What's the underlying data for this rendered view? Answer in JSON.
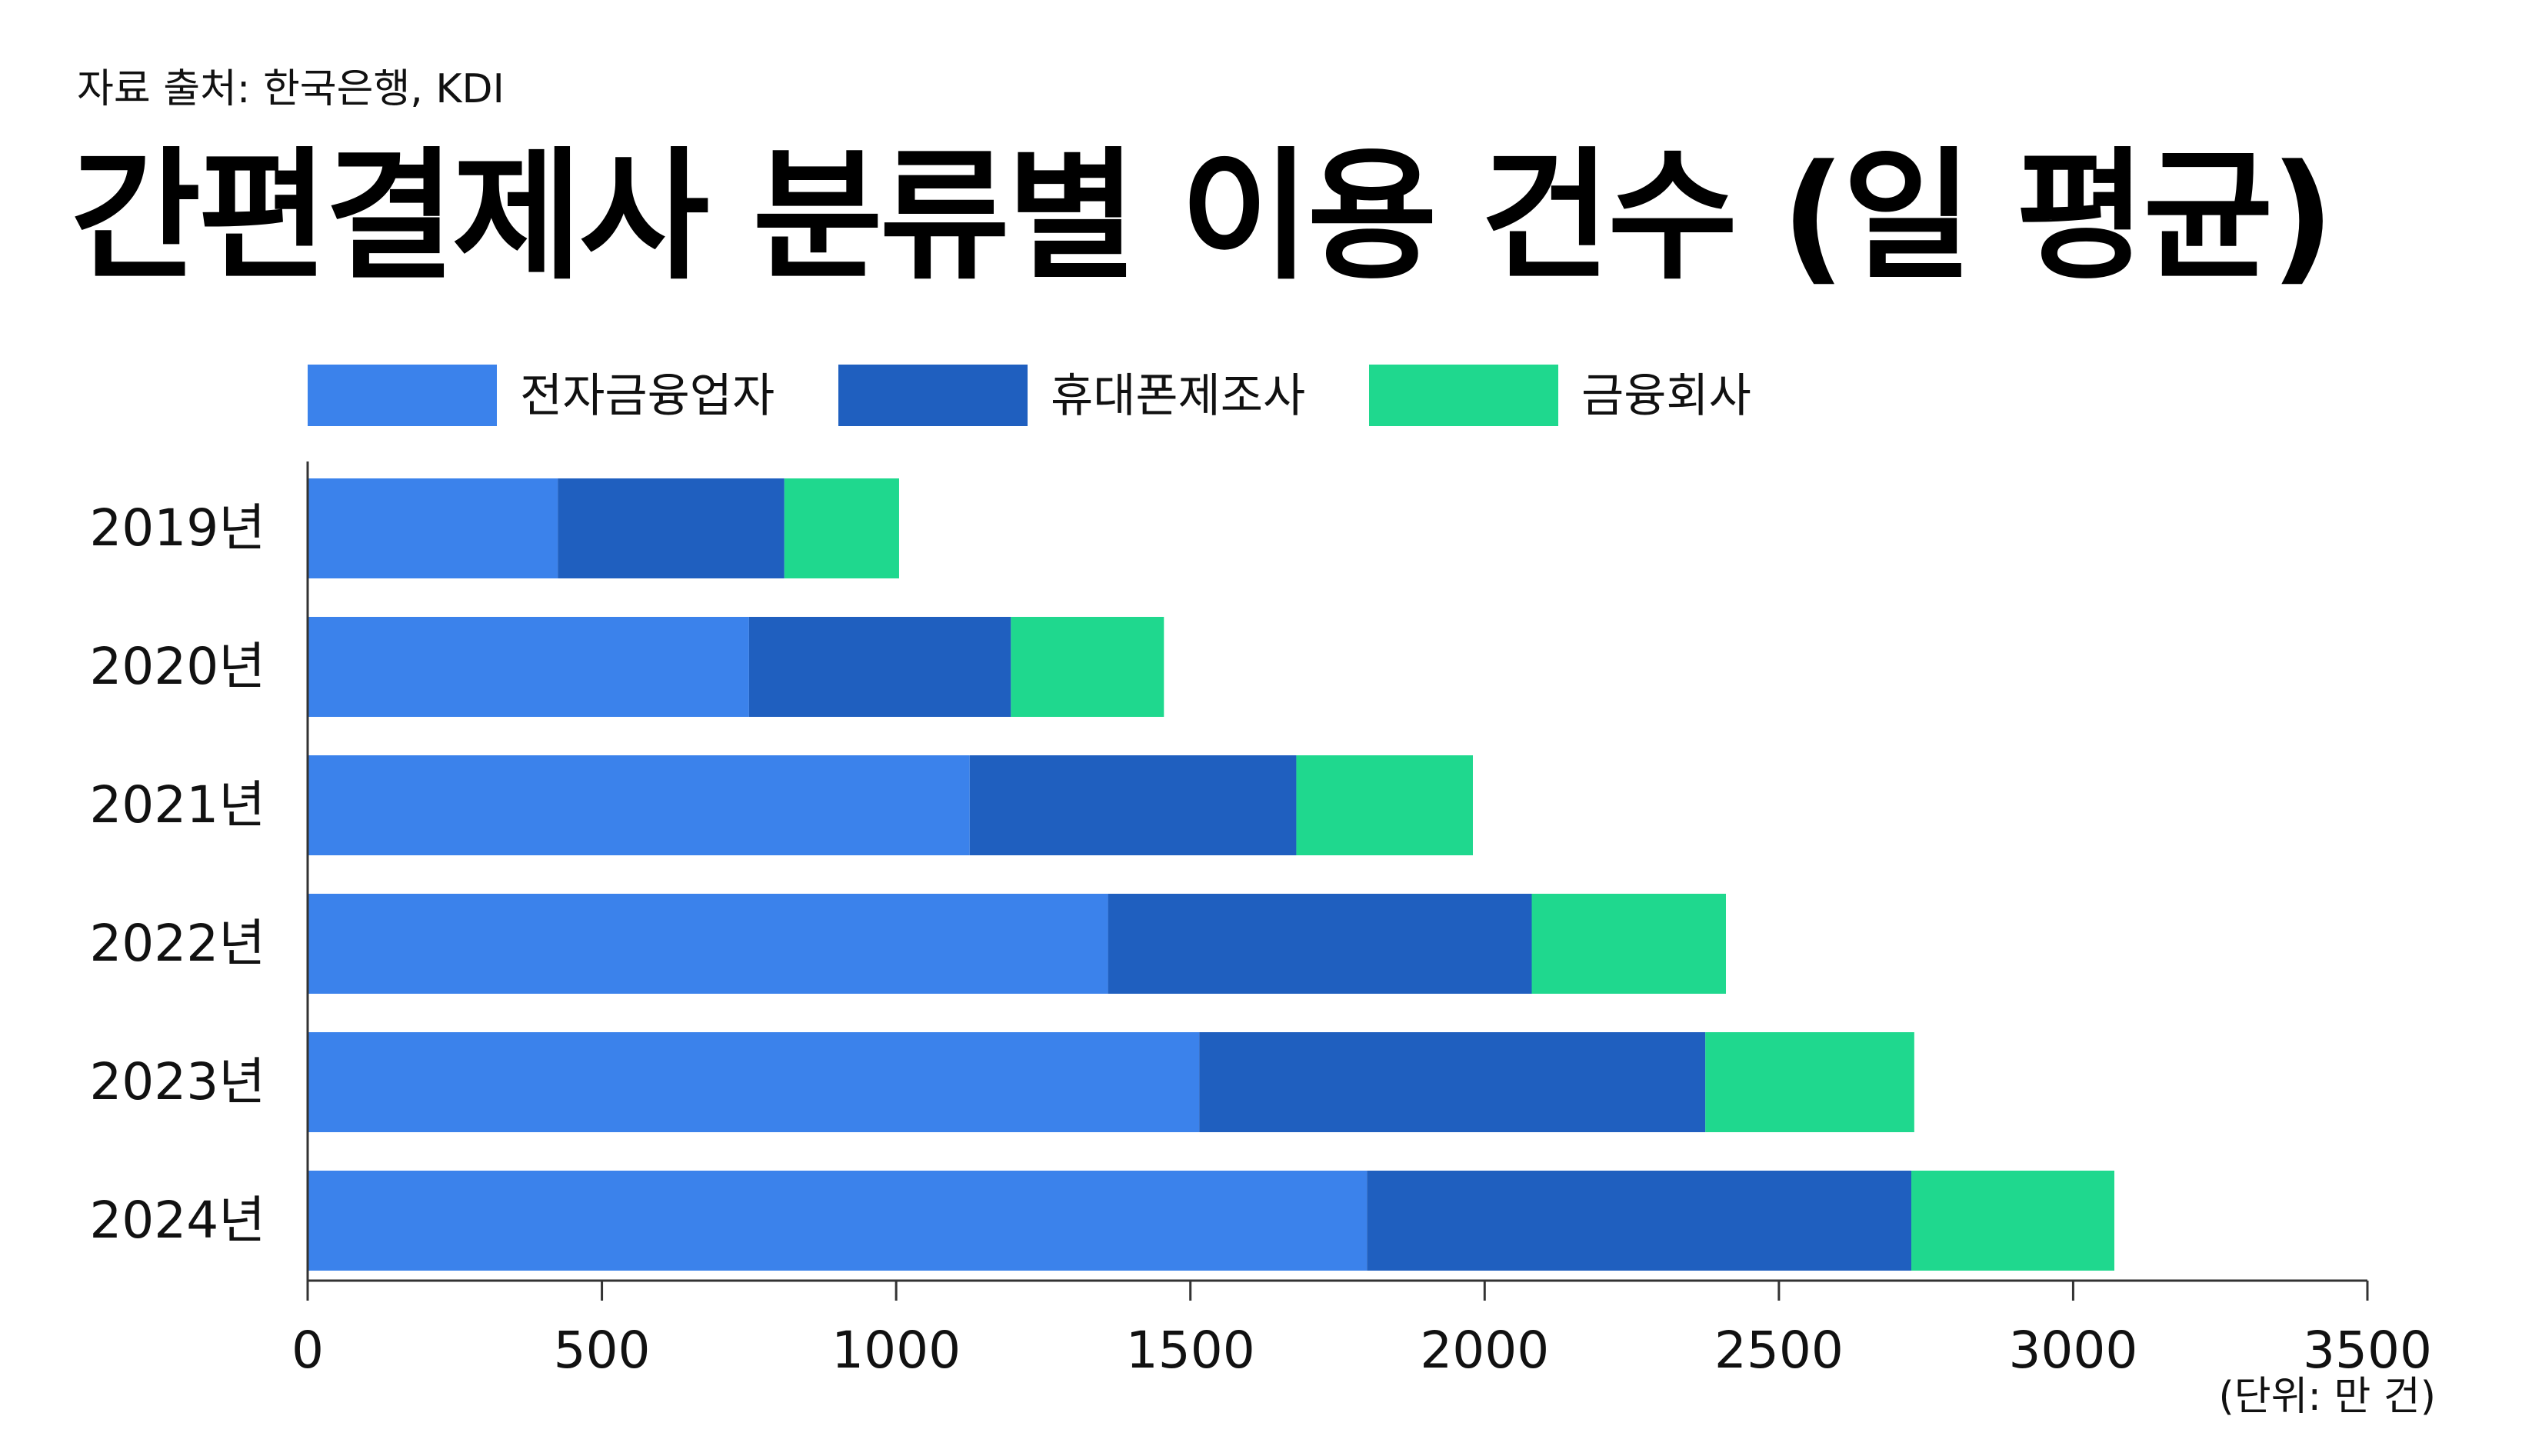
{
  "source": "자료 출처: 한국은행, KDI",
  "title": "간편결제사 분류별 이용 건수 (일 평균)",
  "unit_note": "(단위: 만 건)",
  "colors": {
    "electronic_finance": "#3b82eb",
    "mobile_manufacturer": "#1f5fbf",
    "financial_company": "#1fd88e",
    "axis": "#333333"
  },
  "chart_data": {
    "type": "bar",
    "orientation": "horizontal",
    "stacked": true,
    "categories": [
      "2019년",
      "2020년",
      "2021년",
      "2022년",
      "2023년",
      "2024년"
    ],
    "series": [
      {
        "name": "전자금융업자",
        "color": "#3b82eb",
        "values": [
          425,
          750,
          1125,
          1360,
          1515,
          1800
        ]
      },
      {
        "name": "휴대폰제조사",
        "color": "#1f5fbf",
        "values": [
          385,
          445,
          555,
          720,
          860,
          925
        ]
      },
      {
        "name": "금융회사",
        "color": "#1fd88e",
        "values": [
          195,
          260,
          300,
          330,
          355,
          345
        ]
      }
    ],
    "xlim": [
      0,
      3500
    ],
    "xticks": [
      "0",
      "500",
      "1000",
      "1500",
      "2000",
      "2500",
      "3000",
      "3500"
    ],
    "grid": false,
    "legend_position": "top"
  }
}
